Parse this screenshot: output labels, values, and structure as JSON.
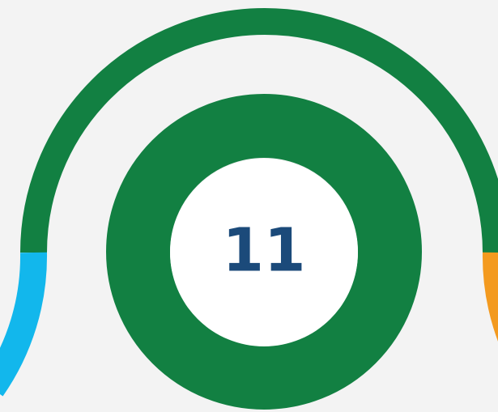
{
  "center_label": "11"
}
